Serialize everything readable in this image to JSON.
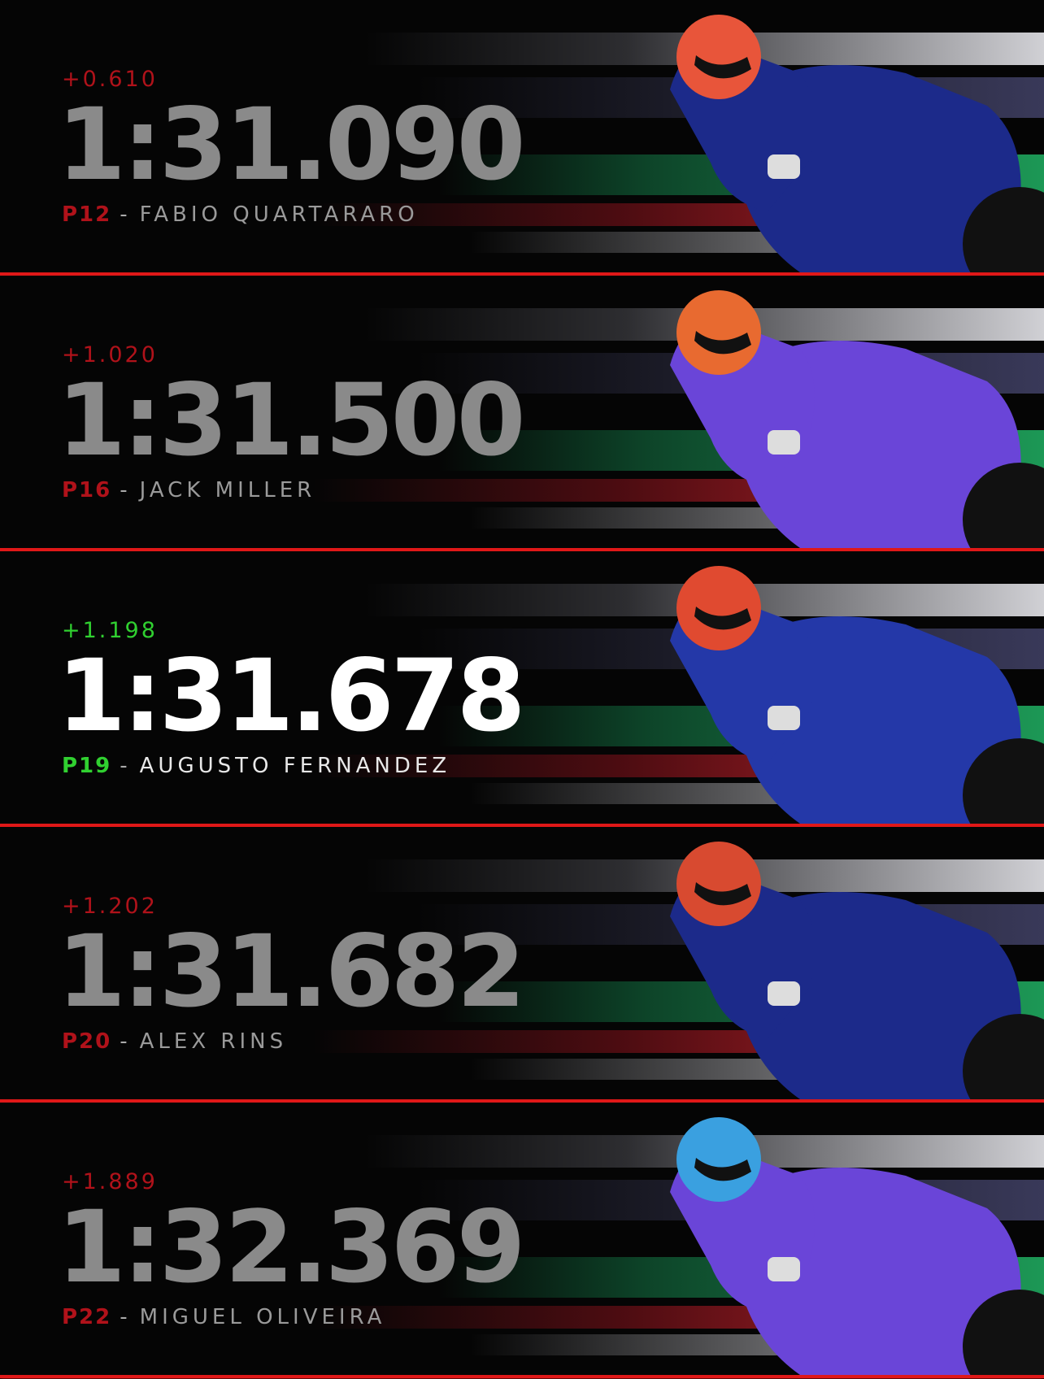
{
  "colors": {
    "slower": "#b0121a",
    "highlight": "#30d030",
    "divider": "#e01818"
  },
  "entries": [
    {
      "delta": "+0.610",
      "time": "1:31.090",
      "position": "P12",
      "separator": "-",
      "rider": "FABIO QUARTARARO",
      "highlighted": false,
      "livery": "#1c2a8a",
      "helmet": "#e8553a"
    },
    {
      "delta": "+1.020",
      "time": "1:31.500",
      "position": "P16",
      "separator": "-",
      "rider": "JACK MILLER",
      "highlighted": false,
      "livery": "#6a45d8",
      "helmet": "#e86a30"
    },
    {
      "delta": "+1.198",
      "time": "1:31.678",
      "position": "P19",
      "separator": "-",
      "rider": "AUGUSTO FERNANDEZ",
      "highlighted": true,
      "livery": "#2438a8",
      "helmet": "#e04a30"
    },
    {
      "delta": "+1.202",
      "time": "1:31.682",
      "position": "P20",
      "separator": "-",
      "rider": "ALEX RINS",
      "highlighted": false,
      "livery": "#1c2a8a",
      "helmet": "#d84a30"
    },
    {
      "delta": "+1.889",
      "time": "1:32.369",
      "position": "P22",
      "separator": "-",
      "rider": "MIGUEL OLIVEIRA",
      "highlighted": false,
      "livery": "#6a45d8",
      "helmet": "#3aa0e0"
    }
  ]
}
